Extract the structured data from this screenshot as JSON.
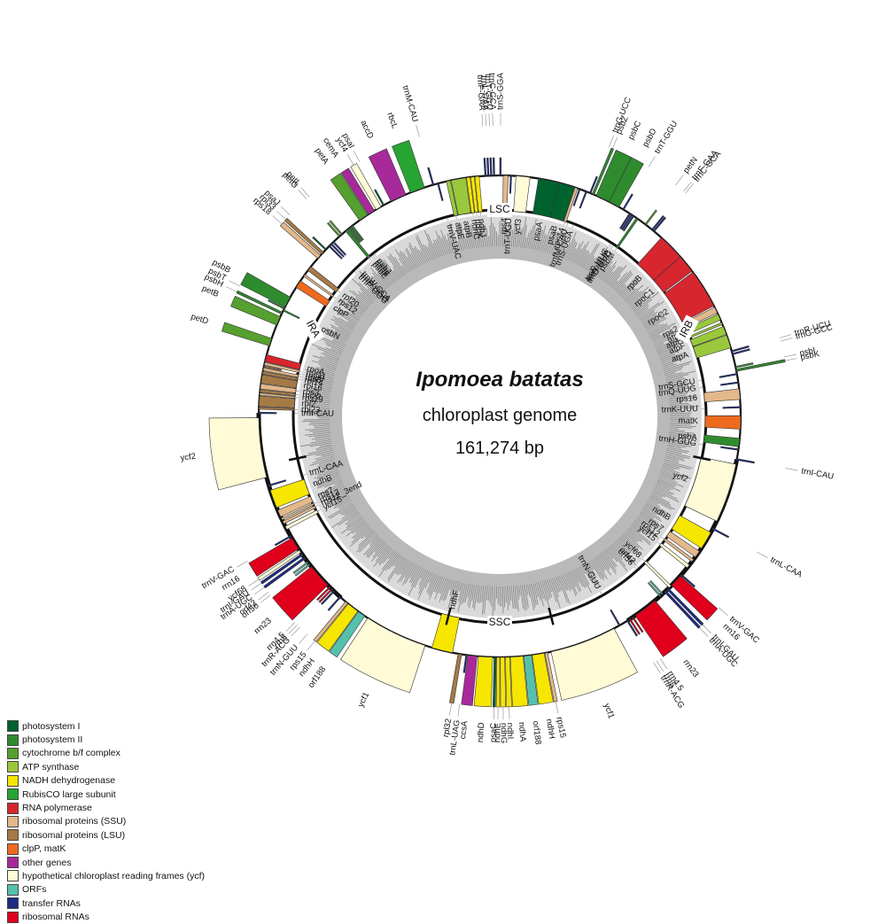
{
  "title": "Ipomoea batatas",
  "subtitle": "chloroplast genome",
  "size_label": "161,274 bp",
  "regions": [
    "LSC",
    "IRB",
    "SSC",
    "IRA"
  ],
  "colors": {
    "photosystem_I": "#00622f",
    "photosystem_II": "#2e8b2e",
    "cytochrome": "#55a02e",
    "atp": "#99c83d",
    "ndh": "#f6e600",
    "rubisco": "#26a532",
    "rnapol": "#d7262e",
    "rps": "#e3b88a",
    "rpl": "#a57a46",
    "clp": "#ee6a1e",
    "other": "#a8299a",
    "ycf": "#fffbd6",
    "orf": "#55c1ad",
    "trna": "#1d2b85",
    "rrna": "#e0001c"
  },
  "legend": [
    {
      "label": "photosystem I",
      "color": "#00622f"
    },
    {
      "label": "photosystem II",
      "color": "#2e8b2e"
    },
    {
      "label": "cytochrome b/f complex",
      "color": "#55a02e"
    },
    {
      "label": "ATP synthase",
      "color": "#99c83d"
    },
    {
      "label": "NADH dehydrogenase",
      "color": "#f6e600"
    },
    {
      "label": "RubisCO large subunit",
      "color": "#26a532"
    },
    {
      "label": "RNA polymerase",
      "color": "#d7262e"
    },
    {
      "label": "ribosomal proteins (SSU)",
      "color": "#e3b88a"
    },
    {
      "label": "ribosomal proteins (LSU)",
      "color": "#a57a46"
    },
    {
      "label": "clpP, matK",
      "color": "#ee6a1e"
    },
    {
      "label": "other genes",
      "color": "#a8299a"
    },
    {
      "label": "hypothetical chloroplast reading frames (ycf)",
      "color": "#fffbd6"
    },
    {
      "label": "ORFs",
      "color": "#55c1ad"
    },
    {
      "label": "transfer RNAs",
      "color": "#1d2b85"
    },
    {
      "label": "ribosomal RNAs",
      "color": "#e0001c"
    }
  ],
  "genes": [
    {
      "name": "trnS-GGA",
      "cat": "trna",
      "pos": 0.0,
      "len": 0.2,
      "strand": "out"
    },
    {
      "name": "rps4",
      "cat": "rps",
      "pos": 0.5,
      "len": 0.7,
      "strand": "in"
    },
    {
      "name": "trnT-UGU",
      "cat": "trna",
      "pos": 1.5,
      "len": 0.2,
      "strand": "in"
    },
    {
      "name": "ycf3",
      "cat": "ycf",
      "pos": 2.3,
      "len": 2.0,
      "strand": "in"
    },
    {
      "name": "psaA",
      "cat": "photosystem_I",
      "pos": 5.5,
      "len": 3.0,
      "strand": "in"
    },
    {
      "name": "psaB",
      "cat": "photosystem_I",
      "pos": 8.5,
      "len": 2.3,
      "strand": "in"
    },
    {
      "name": "rps14",
      "cat": "rps",
      "pos": 10.8,
      "len": 0.4,
      "strand": "in"
    },
    {
      "name": "trnfM-CAU",
      "cat": "trna",
      "pos": 11.4,
      "len": 0.2,
      "strand": "in"
    },
    {
      "name": "trnS-UGA",
      "cat": "trna",
      "pos": 12.4,
      "len": 0.2,
      "strand": "in"
    },
    {
      "name": "trnG-UCC",
      "cat": "trna",
      "pos": 13.0,
      "len": 0.2,
      "strand": "out"
    },
    {
      "name": "psbZ",
      "cat": "photosystem_II",
      "pos": 13.4,
      "len": 0.3,
      "strand": "out"
    },
    {
      "name": "psbC",
      "cat": "photosystem_II",
      "pos": 14.0,
      "len": 2.0,
      "strand": "out"
    },
    {
      "name": "psbD",
      "cat": "photosystem_II",
      "pos": 16.0,
      "len": 1.6,
      "strand": "out"
    },
    {
      "name": "trnT-GGU",
      "cat": "trna",
      "pos": 18.2,
      "len": 0.2,
      "strand": "out"
    },
    {
      "name": "trnE-UUC",
      "cat": "trna",
      "pos": 19.3,
      "len": 0.2,
      "strand": "in"
    },
    {
      "name": "trnY-GUA",
      "cat": "trna",
      "pos": 19.6,
      "len": 0.2,
      "strand": "in"
    },
    {
      "name": "trnD-GUC",
      "cat": "trna",
      "pos": 19.9,
      "len": 0.2,
      "strand": "in"
    },
    {
      "name": "psbM",
      "cat": "photosystem_II",
      "pos": 20.5,
      "len": 0.3,
      "strand": "in"
    },
    {
      "name": "petN",
      "cat": "cytochrome",
      "pos": 22.0,
      "len": 0.2,
      "strand": "out"
    },
    {
      "name": "trnF-GAA",
      "cat": "trna",
      "pos": 23.2,
      "len": 0.2,
      "strand": "out"
    },
    {
      "name": "trnC-GCA",
      "cat": "trna",
      "pos": 23.5,
      "len": 0.2,
      "strand": "out"
    },
    {
      "name": "rpoB",
      "cat": "rnapol",
      "pos": 25.0,
      "len": 3.8,
      "strand": "in"
    },
    {
      "name": "rpoC1",
      "cat": "rnapol",
      "pos": 28.8,
      "len": 2.6,
      "strand": "in"
    },
    {
      "name": "rpoC2",
      "cat": "rnapol",
      "pos": 31.6,
      "len": 5.6,
      "strand": "in"
    },
    {
      "name": "rps2",
      "cat": "rps",
      "pos": 37.4,
      "len": 0.9,
      "strand": "in"
    },
    {
      "name": "atpI",
      "cat": "atp",
      "pos": 38.5,
      "len": 0.9,
      "strand": "in"
    },
    {
      "name": "atpH",
      "cat": "atp",
      "pos": 39.8,
      "len": 0.3,
      "strand": "in"
    },
    {
      "name": "atpF",
      "cat": "atp",
      "pos": 40.4,
      "len": 1.2,
      "strand": "in"
    },
    {
      "name": "atpA",
      "cat": "atp",
      "pos": 41.7,
      "len": 1.9,
      "strand": "in"
    },
    {
      "name": "trnR-UCU",
      "cat": "trna",
      "pos": 44.0,
      "len": 0.2,
      "strand": "out"
    },
    {
      "name": "trnG-GCC",
      "cat": "trna",
      "pos": 44.4,
      "len": 0.2,
      "strand": "out"
    },
    {
      "name": "psbI",
      "cat": "photosystem_II",
      "pos": 46.3,
      "len": 0.2,
      "strand": "out"
    },
    {
      "name": "psbK",
      "cat": "photosystem_II",
      "pos": 46.7,
      "len": 0.3,
      "strand": "out"
    },
    {
      "name": "trnS-GCU",
      "cat": "trna",
      "pos": 47.3,
      "len": 0.2,
      "strand": "in"
    },
    {
      "name": "trnQ-UUG",
      "cat": "trna",
      "pos": 48.5,
      "len": 0.2,
      "strand": "in"
    },
    {
      "name": "rps16",
      "cat": "rps",
      "pos": 49.5,
      "len": 1.5,
      "strand": "in"
    },
    {
      "name": "trnK-UUU",
      "cat": "trna",
      "pos": 52.0,
      "len": 0.2,
      "strand": "in"
    },
    {
      "name": "matK",
      "cat": "clp",
      "pos": 53.3,
      "len": 1.9,
      "strand": "in"
    },
    {
      "name": "psbA",
      "cat": "photosystem_II",
      "pos": 56.5,
      "len": 1.2,
      "strand": "in"
    },
    {
      "name": "trnH-GUG",
      "cat": "trna",
      "pos": 58.0,
      "len": 0.2,
      "strand": "in"
    },
    {
      "name": "trnI-CAU",
      "cat": "trna",
      "pos": 59.4,
      "len": 0.2,
      "strand": "out"
    },
    {
      "name": "ycf2",
      "cat": "ycf",
      "pos": 60.2,
      "len": 8.5,
      "strand": "in"
    },
    {
      "name": "trnL-CAA",
      "cat": "trna",
      "pos": 69.8,
      "len": 0.2,
      "strand": "out"
    },
    {
      "name": "ndhB",
      "cat": "ndh",
      "pos": 70.5,
      "len": 2.6,
      "strand": "in"
    },
    {
      "name": "rps7",
      "cat": "rps",
      "pos": 73.6,
      "len": 1.0,
      "strand": "in"
    },
    {
      "name": "rps12",
      "cat": "rps",
      "pos": 75.0,
      "len": 0.4,
      "strand": "in"
    },
    {
      "name": "ycf15",
      "cat": "ycf",
      "pos": 76.0,
      "len": 0.5,
      "strand": "in"
    },
    {
      "name": "trnV-GAC",
      "cat": "trna",
      "pos": 77.7,
      "len": 0.2,
      "strand": "out"
    },
    {
      "name": "rrn16",
      "cat": "rrna",
      "pos": 78.0,
      "len": 1.8,
      "strand": "out"
    },
    {
      "name": "ycf68",
      "cat": "ycf",
      "pos": 79.9,
      "len": 0.4,
      "strand": "in"
    },
    {
      "name": "trnI-GAU",
      "cat": "trna",
      "pos": 80.4,
      "len": 0.3,
      "strand": "out"
    },
    {
      "name": "trnA-UGC",
      "cat": "trna",
      "pos": 80.9,
      "len": 0.3,
      "strand": "out"
    },
    {
      "name": "orf42",
      "cat": "orf",
      "pos": 81.5,
      "len": 0.2,
      "strand": "in"
    },
    {
      "name": "orf56",
      "cat": "orf",
      "pos": 81.9,
      "len": 0.2,
      "strand": "in"
    },
    {
      "name": "rrn23",
      "cat": "rrna",
      "pos": 83.0,
      "len": 3.5,
      "strand": "out"
    },
    {
      "name": "rrn4.5",
      "cat": "rrna",
      "pos": 86.8,
      "len": 0.2,
      "strand": "out"
    },
    {
      "name": "rrn5",
      "cat": "rrna",
      "pos": 87.3,
      "len": 0.2,
      "strand": "out"
    },
    {
      "name": "trnR-ACG",
      "cat": "trna",
      "pos": 87.7,
      "len": 0.2,
      "strand": "out"
    },
    {
      "name": "trnN-GUU",
      "cat": "trna",
      "pos": 89.0,
      "len": 0.2,
      "strand": "in"
    },
    {
      "name": "ycf1",
      "cat": "ycf",
      "pos": 90.0,
      "len": 9.5,
      "strand": "out"
    },
    {
      "name": "rps15",
      "cat": "rps",
      "pos": 100.0,
      "len": 0.4,
      "strand": "out"
    },
    {
      "name": "ndhH",
      "cat": "ndh",
      "pos": 100.5,
      "len": 1.7,
      "strand": "out"
    },
    {
      "name": "orf188",
      "cat": "orf",
      "pos": 102.3,
      "len": 1.1,
      "strand": "out"
    },
    {
      "name": "ndhA",
      "cat": "ndh",
      "pos": 103.5,
      "len": 1.8,
      "strand": "out"
    },
    {
      "name": "ndhI",
      "cat": "ndh",
      "pos": 105.4,
      "len": 0.6,
      "strand": "out"
    },
    {
      "name": "ndhG",
      "cat": "ndh",
      "pos": 106.1,
      "len": 0.6,
      "strand": "out"
    },
    {
      "name": "ndhE",
      "cat": "ndh",
      "pos": 106.8,
      "len": 0.4,
      "strand": "out"
    },
    {
      "name": "psaC",
      "cat": "photosystem_I",
      "pos": 107.3,
      "len": 0.3,
      "strand": "out"
    },
    {
      "name": "ndhD",
      "cat": "ndh",
      "pos": 107.8,
      "len": 2.0,
      "strand": "out"
    },
    {
      "name": "ccsA",
      "cat": "other",
      "pos": 110.0,
      "len": 1.3,
      "strand": "out"
    },
    {
      "name": "trnL-UAG",
      "cat": "trna",
      "pos": 111.4,
      "len": 0.2,
      "strand": "out"
    },
    {
      "name": "rpl32",
      "cat": "rpl",
      "pos": 112.2,
      "len": 0.5,
      "strand": "out"
    },
    {
      "name": "ndhF",
      "cat": "ndh",
      "pos": 113.5,
      "len": 3.0,
      "strand": "in"
    },
    {
      "name": "ycf1",
      "cat": "ycf",
      "pos": 117.5,
      "len": 9.0,
      "strand": "out"
    },
    {
      "name": "orf188",
      "cat": "orf",
      "pos": 127.0,
      "len": 1.1,
      "strand": "out"
    },
    {
      "name": "ndhH",
      "cat": "ndh",
      "pos": 128.2,
      "len": 1.7,
      "strand": "out"
    },
    {
      "name": "rps15",
      "cat": "rps",
      "pos": 130.0,
      "len": 0.4,
      "strand": "out"
    },
    {
      "name": "trnN-GUU",
      "cat": "trna",
      "pos": 131.3,
      "len": 0.2,
      "strand": "out"
    },
    {
      "name": "trnR-ACG",
      "cat": "trna",
      "pos": 132.5,
      "len": 0.2,
      "strand": "out"
    },
    {
      "name": "rrn5",
      "cat": "rrna",
      "pos": 132.9,
      "len": 0.2,
      "strand": "out"
    },
    {
      "name": "rrn4.5",
      "cat": "rrna",
      "pos": 133.3,
      "len": 0.2,
      "strand": "out"
    },
    {
      "name": "rrn23",
      "cat": "rrna",
      "pos": 133.8,
      "len": 3.5,
      "strand": "out"
    },
    {
      "name": "orf56",
      "cat": "orf",
      "pos": 137.6,
      "len": 0.2,
      "strand": "out"
    },
    {
      "name": "orf42",
      "cat": "orf",
      "pos": 138.0,
      "len": 0.2,
      "strand": "out"
    },
    {
      "name": "trnA-UGC",
      "cat": "trna",
      "pos": 138.7,
      "len": 0.3,
      "strand": "out"
    },
    {
      "name": "trnI-GAU",
      "cat": "trna",
      "pos": 139.3,
      "len": 0.3,
      "strand": "out"
    },
    {
      "name": "ycf68",
      "cat": "ycf",
      "pos": 139.8,
      "len": 0.4,
      "strand": "out"
    },
    {
      "name": "rrn16",
      "cat": "rrna",
      "pos": 140.4,
      "len": 1.8,
      "strand": "out"
    },
    {
      "name": "trnV-GAC",
      "cat": "trna",
      "pos": 142.4,
      "len": 0.2,
      "strand": "out"
    },
    {
      "name": "ycf15",
      "cat": "ycf",
      "pos": 143.6,
      "len": 0.5,
      "strand": "in"
    },
    {
      "name": "rps12_3end",
      "cat": "rps",
      "pos": 144.5,
      "len": 0.4,
      "strand": "in"
    },
    {
      "name": "rps12",
      "cat": "rps",
      "pos": 145.1,
      "len": 0.3,
      "strand": "in"
    },
    {
      "name": "rps7",
      "cat": "rps",
      "pos": 145.6,
      "len": 1.0,
      "strand": "in"
    },
    {
      "name": "ndhB",
      "cat": "ndh",
      "pos": 147.0,
      "len": 2.6,
      "strand": "in"
    },
    {
      "name": "trnL-CAA",
      "cat": "trna",
      "pos": 150.2,
      "len": 0.2,
      "strand": "in"
    },
    {
      "name": "ycf2",
      "cat": "ycf",
      "pos": 151.5,
      "len": 8.5,
      "strand": "out"
    },
    {
      "name": "trnI-CAU",
      "cat": "trna",
      "pos": 160.6,
      "len": 0.2,
      "strand": "in"
    },
    {
      "name": "rpl23",
      "cat": "rpl",
      "pos": 161.2,
      "len": 0.3,
      "strand": "in"
    },
    {
      "name": "rpl2",
      "cat": "rpl",
      "pos": 161.6,
      "len": 1.5,
      "strand": "in"
    },
    {
      "name": "rps19",
      "cat": "rps",
      "pos": 163.2,
      "len": 0.3,
      "strand": "in"
    },
    {
      "name": "rpl22",
      "cat": "rpl",
      "pos": 163.6,
      "len": 0.4,
      "strand": "in"
    },
    {
      "name": "rps3",
      "cat": "rps",
      "pos": 164.1,
      "len": 0.7,
      "strand": "in"
    },
    {
      "name": "rpl16",
      "cat": "rpl",
      "pos": 164.9,
      "len": 1.2,
      "strand": "in"
    },
    {
      "name": "rpl14",
      "cat": "rpl",
      "pos": 166.2,
      "len": 0.4,
      "strand": "in"
    },
    {
      "name": "rps8",
      "cat": "rps",
      "pos": 166.7,
      "len": 0.4,
      "strand": "in"
    },
    {
      "name": "rpl36",
      "cat": "rpl",
      "pos": 167.2,
      "len": 0.2,
      "strand": "in"
    },
    {
      "name": "rps11",
      "cat": "rps",
      "pos": 167.5,
      "len": 0.4,
      "strand": "in"
    },
    {
      "name": "rpoA",
      "cat": "rnapol",
      "pos": 168.0,
      "len": 1.0,
      "strand": "in"
    },
    {
      "name": "petD",
      "cat": "cytochrome",
      "pos": 170.3,
      "len": 1.1,
      "strand": "out"
    },
    {
      "name": "petB",
      "cat": "cytochrome",
      "pos": 173.4,
      "len": 1.3,
      "strand": "out"
    },
    {
      "name": "psbH",
      "cat": "photosystem_II",
      "pos": 175.1,
      "len": 0.3,
      "strand": "out"
    },
    {
      "name": "psbN",
      "cat": "photosystem_II",
      "pos": 175.6,
      "len": 0.2,
      "strand": "in"
    },
    {
      "name": "psbT",
      "cat": "photosystem_II",
      "pos": 175.9,
      "len": 0.2,
      "strand": "out"
    },
    {
      "name": "psbB",
      "cat": "photosystem_II",
      "pos": 176.2,
      "len": 1.6,
      "strand": "out"
    },
    {
      "name": "clpP",
      "cat": "clp",
      "pos": 179.4,
      "len": 1.1,
      "strand": "in"
    },
    {
      "name": "rps12",
      "cat": "rps",
      "pos": 181.3,
      "len": 0.3,
      "strand": "in"
    },
    {
      "name": "rpl20",
      "cat": "rpl",
      "pos": 182.3,
      "len": 0.7,
      "strand": "in"
    },
    {
      "name": "rps18",
      "cat": "rps",
      "pos": 184.5,
      "len": 0.6,
      "strand": "out"
    },
    {
      "name": "rpl33",
      "cat": "rpl",
      "pos": 185.3,
      "len": 0.4,
      "strand": "out"
    },
    {
      "name": "psaJ",
      "cat": "photosystem_I",
      "pos": 186.1,
      "len": 0.2,
      "strand": "out"
    },
    {
      "name": "trnP-GGG",
      "cat": "trna",
      "pos": 186.8,
      "len": 0.2,
      "strand": "in"
    },
    {
      "name": "trnP-UGG",
      "cat": "trna",
      "pos": 187.2,
      "len": 0.2,
      "strand": "in"
    },
    {
      "name": "trnW-CCA",
      "cat": "trna",
      "pos": 187.6,
      "len": 0.2,
      "strand": "in"
    },
    {
      "name": "petG",
      "cat": "cytochrome",
      "pos": 188.8,
      "len": 0.2,
      "strand": "out"
    },
    {
      "name": "petL",
      "cat": "cytochrome",
      "pos": 189.2,
      "len": 0.2,
      "strand": "out"
    },
    {
      "name": "psbE",
      "cat": "photosystem_II",
      "pos": 190.0,
      "len": 0.4,
      "strand": "in"
    },
    {
      "name": "psbF",
      "cat": "photosystem_II",
      "pos": 190.5,
      "len": 0.2,
      "strand": "in"
    },
    {
      "name": "psbL",
      "cat": "photosystem_II",
      "pos": 190.8,
      "len": 0.2,
      "strand": "in"
    },
    {
      "name": "psbJ",
      "cat": "photosystem_II",
      "pos": 191.1,
      "len": 0.2,
      "strand": "in"
    },
    {
      "name": "petA",
      "cat": "cytochrome",
      "pos": 192.5,
      "len": 1.4,
      "strand": "out"
    },
    {
      "name": "cemA",
      "cat": "other",
      "pos": 194.0,
      "len": 1.0,
      "strand": "out"
    },
    {
      "name": "ycf4",
      "cat": "ycf",
      "pos": 195.3,
      "len": 0.8,
      "strand": "out"
    },
    {
      "name": "psaI",
      "cat": "photosystem_I",
      "pos": 196.4,
      "len": 0.2,
      "strand": "out"
    },
    {
      "name": "accD",
      "cat": "other",
      "pos": 197.7,
      "len": 2.3,
      "strand": "out"
    },
    {
      "name": "rbcL",
      "cat": "rubisco",
      "pos": 200.7,
      "len": 2.1,
      "strand": "out"
    },
    {
      "name": "trnM-CAU",
      "cat": "trna",
      "pos": 204.0,
      "len": 0.2,
      "strand": "out"
    },
    {
      "name": "trnV-UAC",
      "cat": "trna",
      "pos": 204.7,
      "len": 0.2,
      "strand": "in"
    },
    {
      "name": "atpE",
      "cat": "atp",
      "pos": 206.0,
      "len": 0.6,
      "strand": "in"
    },
    {
      "name": "atpB",
      "cat": "atp",
      "pos": 206.7,
      "len": 2.1,
      "strand": "in"
    },
    {
      "name": "ndhC",
      "cat": "ndh",
      "pos": 208.9,
      "len": 0.5,
      "strand": "in"
    },
    {
      "name": "ndhK",
      "cat": "ndh",
      "pos": 209.5,
      "len": 0.5,
      "strand": "in"
    },
    {
      "name": "ndhJ",
      "cat": "ndh",
      "pos": 210.1,
      "len": 0.6,
      "strand": "in"
    },
    {
      "name": "trnF-GAA",
      "cat": "trna",
      "pos": 211.5,
      "len": 0.2,
      "strand": "out"
    },
    {
      "name": "trnL-UAA",
      "cat": "trna",
      "pos": 211.9,
      "len": 0.2,
      "strand": "out"
    },
    {
      "name": "trnT-GGU",
      "cat": "trna",
      "pos": 212.3,
      "len": 0.2,
      "strand": "out"
    },
    {
      "name": "trnC-GCA",
      "cat": "trna",
      "pos": 212.7,
      "len": 0.2,
      "strand": "out"
    }
  ],
  "label_columns": {
    "left_rp": [
      "rpoA",
      "rps11",
      "rpl36",
      "rps8",
      "rpl14",
      "rpl16",
      "rps3",
      "rpl22",
      "rps19",
      "rpl2",
      "rpl23",
      "trnI-CAU"
    ],
    "top_cluster": [
      "trnL-UAA",
      "trnF-GAA",
      "trnC-GCA"
    ],
    "top_cluster2": [
      "trnT-GGU",
      "trnM-CAU"
    ],
    "inner_cluster_left": [
      "psbJ",
      "psbL",
      "psbF",
      "psbE",
      "trnW-CCA",
      "trnP-UGG",
      "trnP-GGG"
    ],
    "inner_cluster_top": [
      "ndhK",
      "ndhC",
      "trnV-UAC",
      "atpE"
    ],
    "inner_cluster_trn": [
      "trnE-UUC",
      "trnY-GUA",
      "trnD-GUC",
      "psbM"
    ],
    "inner_ndh_ssc": [
      "psaC",
      "ndhE",
      "ndhG",
      "ndhI",
      "ndhA",
      "orf188",
      "ndhH",
      "rps15"
    ],
    "ira_lower": [
      "ycf68",
      "trnI-GAU",
      "trnA-UGC"
    ],
    "irb_lower": [
      "rrn16",
      "ycf68",
      "trnI-GAU",
      "trnA-UGC"
    ]
  }
}
